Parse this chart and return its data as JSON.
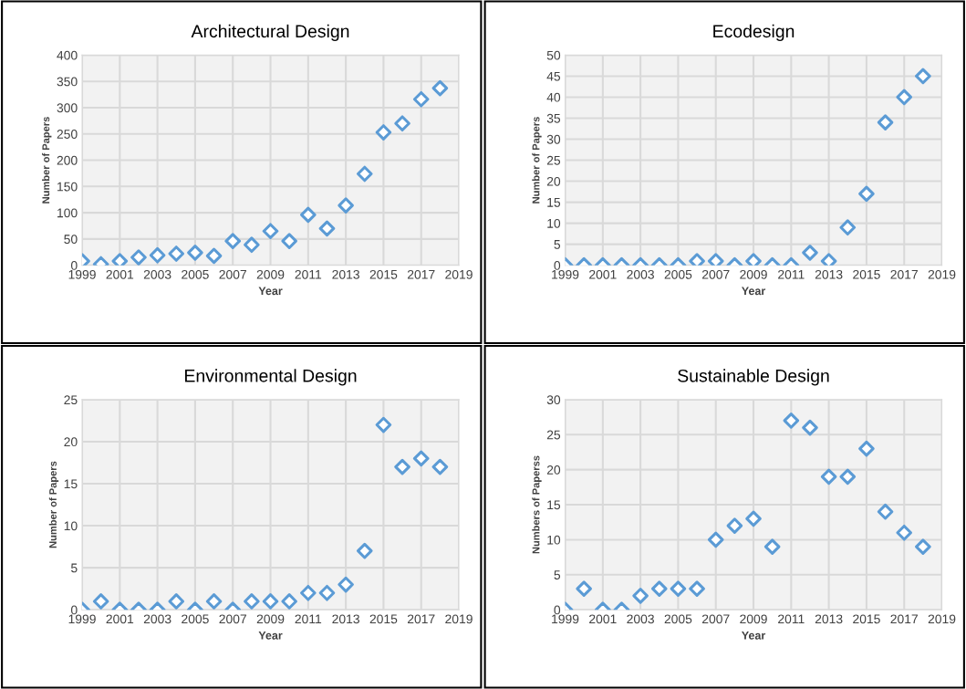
{
  "chart_data": [
    {
      "type": "scatter",
      "title": "Architectural Design",
      "xlabel": "Year",
      "ylabel": "Number of Papers",
      "x": [
        1999,
        2000,
        2001,
        2002,
        2003,
        2004,
        2005,
        2006,
        2007,
        2008,
        2009,
        2010,
        2011,
        2012,
        2013,
        2014,
        2015,
        2016,
        2017,
        2018
      ],
      "series": [
        {
          "color": "#5b9bd5",
          "values": [
            8,
            2,
            8,
            15,
            19,
            22,
            24,
            18,
            46,
            39,
            65,
            46,
            96,
            70,
            114,
            174,
            253,
            270,
            316,
            337
          ]
        }
      ],
      "xlim": [
        1999,
        2019
      ],
      "xticks": [
        1999,
        2001,
        2003,
        2005,
        2007,
        2009,
        2011,
        2013,
        2015,
        2017,
        2019
      ],
      "ylim": [
        0,
        400
      ],
      "yticks": [
        0,
        50,
        100,
        150,
        200,
        250,
        300,
        350,
        400
      ],
      "grid": true,
      "marker": "diamond"
    },
    {
      "type": "scatter",
      "title": "Ecodesign",
      "xlabel": "Year",
      "ylabel": "Number of Papers",
      "x": [
        1999,
        2000,
        2001,
        2002,
        2003,
        2004,
        2005,
        2006,
        2007,
        2008,
        2009,
        2010,
        2011,
        2012,
        2013,
        2014,
        2015,
        2016,
        2017,
        2018
      ],
      "series": [
        {
          "color": "#5b9bd5",
          "values": [
            0,
            0,
            0,
            0,
            0,
            0,
            0,
            1,
            1,
            0,
            1,
            0,
            0,
            3,
            1,
            9,
            17,
            34,
            40,
            45
          ]
        }
      ],
      "xlim": [
        1999,
        2019
      ],
      "xticks": [
        1999,
        2001,
        2003,
        2005,
        2007,
        2009,
        2011,
        2013,
        2015,
        2017,
        2019
      ],
      "ylim": [
        0,
        50
      ],
      "yticks": [
        0,
        5,
        10,
        15,
        20,
        25,
        30,
        35,
        40,
        45,
        50
      ],
      "grid": true,
      "marker": "diamond"
    },
    {
      "type": "scatter",
      "title": "Environmental Design",
      "xlabel": "Year",
      "ylabel": "Number of Papers",
      "x": [
        1999,
        2000,
        2001,
        2002,
        2003,
        2004,
        2005,
        2006,
        2007,
        2008,
        2009,
        2010,
        2011,
        2012,
        2013,
        2014,
        2015,
        2016,
        2017,
        2018
      ],
      "series": [
        {
          "color": "#5b9bd5",
          "values": [
            0,
            1,
            0,
            0,
            0,
            1,
            0,
            1,
            0,
            1,
            1,
            1,
            2,
            2,
            3,
            7,
            22,
            17,
            18,
            17
          ]
        }
      ],
      "xlim": [
        1999,
        2019
      ],
      "xticks": [
        1999,
        2001,
        2003,
        2005,
        2007,
        2009,
        2011,
        2013,
        2015,
        2017,
        2019
      ],
      "ylim": [
        0,
        25
      ],
      "yticks": [
        0,
        5,
        10,
        15,
        20,
        25
      ],
      "grid": true,
      "marker": "diamond"
    },
    {
      "type": "scatter",
      "title": "Sustainable Design",
      "xlabel": "Year",
      "ylabel": "Numbers of Paperss",
      "x": [
        1999,
        2000,
        2001,
        2002,
        2003,
        2004,
        2005,
        2006,
        2007,
        2008,
        2009,
        2010,
        2011,
        2012,
        2013,
        2014,
        2015,
        2016,
        2017,
        2018
      ],
      "series": [
        {
          "color": "#5b9bd5",
          "values": [
            0,
            3,
            0,
            0,
            2,
            3,
            3,
            3,
            10,
            12,
            13,
            9,
            27,
            26,
            19,
            19,
            23,
            14,
            11,
            9
          ]
        }
      ],
      "xlim": [
        1999,
        2019
      ],
      "xticks": [
        1999,
        2001,
        2003,
        2005,
        2007,
        2009,
        2011,
        2013,
        2015,
        2017,
        2019
      ],
      "ylim": [
        0,
        30
      ],
      "yticks": [
        0,
        5,
        10,
        15,
        20,
        25,
        30
      ],
      "grid": true,
      "marker": "diamond"
    }
  ]
}
